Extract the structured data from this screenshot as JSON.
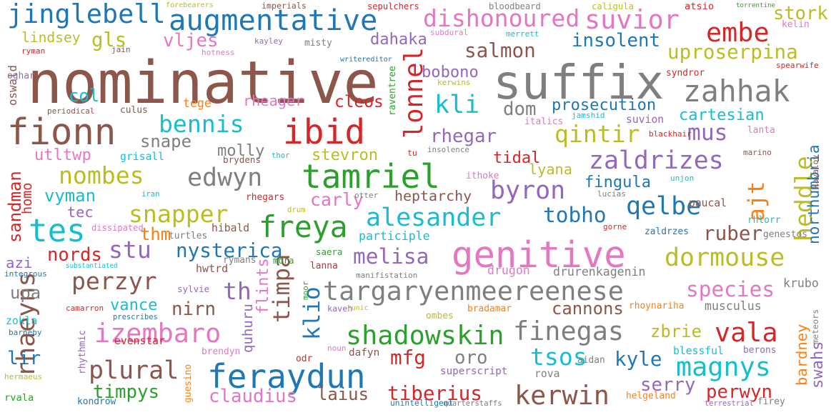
{
  "words": [
    {
      "text": "nominative",
      "color": "#8c564b"
    },
    {
      "text": "suffix",
      "color": "#7f7f7f"
    },
    {
      "text": "fionn",
      "color": "#8c564b"
    },
    {
      "text": "genitive",
      "color": "#e377c2"
    },
    {
      "text": "tamriel",
      "color": "#2ca02c"
    },
    {
      "text": "feraydun",
      "color": "#1f77b4"
    },
    {
      "text": "targaryenmeereenese",
      "color": "#7f7f7f"
    },
    {
      "text": "ibid",
      "color": "#d62728"
    },
    {
      "text": "zahhak",
      "color": "#7f7f7f"
    },
    {
      "text": "jinglebell",
      "color": "#1f77b4"
    },
    {
      "text": "augmentative",
      "color": "#1f77b4"
    },
    {
      "text": "izembaro",
      "color": "#e377c2"
    },
    {
      "text": "freya",
      "color": "#2ca02c"
    },
    {
      "text": "shadowskin",
      "color": "#2ca02c"
    },
    {
      "text": "finegas",
      "color": "#7f7f7f"
    },
    {
      "text": "kerwin",
      "color": "#8c564b"
    },
    {
      "text": "magnys",
      "color": "#17becf"
    },
    {
      "text": "alesander",
      "color": "#17becf"
    },
    {
      "text": "dormouse",
      "color": "#bcbd22"
    },
    {
      "text": "zaldrizes",
      "color": "#9467bd"
    },
    {
      "text": "edwyn",
      "color": "#7f7f7f"
    },
    {
      "text": "qintir",
      "color": "#bcbd22"
    },
    {
      "text": "byron",
      "color": "#9467bd"
    },
    {
      "text": "qelbe",
      "color": "#1f77b4"
    },
    {
      "text": "tes",
      "color": "#17becf"
    },
    {
      "text": "vala",
      "color": "#d62728"
    },
    {
      "text": "plural",
      "color": "#8c564b"
    },
    {
      "text": "suvior",
      "color": "#e377c2"
    },
    {
      "text": "embe",
      "color": "#d62728"
    },
    {
      "text": "dishonoured",
      "color": "#e377c2"
    },
    {
      "text": "perzyr",
      "color": "#8c564b"
    },
    {
      "text": "rhaeyns",
      "color": "#8c564b"
    },
    {
      "text": "snapper",
      "color": "#bcbd22"
    },
    {
      "text": "nombes",
      "color": "#bcbd22"
    },
    {
      "text": "bennis",
      "color": "#17becf"
    },
    {
      "text": "stu",
      "color": "#9467bd"
    },
    {
      "text": "timpa",
      "color": "#8c564b"
    },
    {
      "text": "tsos",
      "color": "#17becf"
    },
    {
      "text": "kli",
      "color": "#17becf"
    },
    {
      "text": "mus",
      "color": "#9467bd"
    },
    {
      "text": "lonnel",
      "color": "#d62728"
    },
    {
      "text": "heddle",
      "color": "#bcbd22"
    },
    {
      "text": "ajt",
      "color": "#ff7f0e"
    },
    {
      "text": "uproserpina",
      "color": "#bcbd22"
    },
    {
      "text": "salmon",
      "color": "#8c564b"
    },
    {
      "text": "insolent",
      "color": "#1f77b4"
    },
    {
      "text": "species",
      "color": "#e377c2"
    },
    {
      "text": "nysterica",
      "color": "#1f77b4"
    },
    {
      "text": "melisa",
      "color": "#9467bd"
    },
    {
      "text": "tobho",
      "color": "#1f77b4"
    },
    {
      "text": "ruber",
      "color": "#8c564b"
    },
    {
      "text": "kyle",
      "color": "#1f77b4"
    },
    {
      "text": "serry",
      "color": "#9467bd"
    },
    {
      "text": "perwyn",
      "color": "#d62728"
    },
    {
      "text": "tiberius",
      "color": "#d62728"
    },
    {
      "text": "claudius",
      "color": "#e377c2"
    },
    {
      "text": "timpys",
      "color": "#2ca02c"
    },
    {
      "text": "laius",
      "color": "#8c564b"
    },
    {
      "text": "mfg",
      "color": "#d62728"
    },
    {
      "text": "oro",
      "color": "#7f7f7f"
    },
    {
      "text": "cannons",
      "color": "#8c564b"
    },
    {
      "text": "nirn",
      "color": "#8c564b"
    },
    {
      "text": "vance",
      "color": "#17becf"
    },
    {
      "text": "th",
      "color": "#9467bd"
    },
    {
      "text": "klio",
      "color": "#1f77b4"
    },
    {
      "text": "flints",
      "color": "#e377c2"
    },
    {
      "text": "quhuru",
      "color": "#9467bd"
    },
    {
      "text": "bardney",
      "color": "#ff7f0e"
    },
    {
      "text": "swahs",
      "color": "#9467bd"
    },
    {
      "text": "northumbria",
      "color": "#1f77b4"
    },
    {
      "text": "zbrie",
      "color": "#bcbd22"
    },
    {
      "text": "lir",
      "color": "#1f77b4"
    },
    {
      "text": "upa",
      "color": "#7f7f7f"
    },
    {
      "text": "azi",
      "color": "#9467bd"
    },
    {
      "text": "nords",
      "color": "#d62728"
    },
    {
      "text": "thm",
      "color": "#ff7f0e"
    },
    {
      "text": "vyman",
      "color": "#17becf"
    },
    {
      "text": "tec",
      "color": "#9467bd"
    },
    {
      "text": "sandman",
      "color": "#d62728"
    },
    {
      "text": "homo",
      "color": "#d62728"
    },
    {
      "text": "utltwp",
      "color": "#e377c2"
    },
    {
      "text": "snape",
      "color": "#7f7f7f"
    },
    {
      "text": "molly",
      "color": "#7f7f7f"
    },
    {
      "text": "stevron",
      "color": "#bcbd22"
    },
    {
      "text": "cleos",
      "color": "#d62728"
    },
    {
      "text": "rheager",
      "color": "#e377c2"
    },
    {
      "text": "rhegar",
      "color": "#9467bd"
    },
    {
      "text": "tidal",
      "color": "#d62728"
    },
    {
      "text": "lyana",
      "color": "#bcbd22"
    },
    {
      "text": "fingula",
      "color": "#1f77b4"
    },
    {
      "text": "dom",
      "color": "#7f7f7f"
    },
    {
      "text": "prosecution",
      "color": "#1f77b4"
    },
    {
      "text": "cartesian",
      "color": "#17becf"
    },
    {
      "text": "bobono",
      "color": "#9467bd"
    },
    {
      "text": "vljes",
      "color": "#e377c2"
    },
    {
      "text": "gls",
      "color": "#bcbd22"
    },
    {
      "text": "dahaka",
      "color": "#9467bd"
    },
    {
      "text": "oswald",
      "color": "#8c564b"
    },
    {
      "text": "col",
      "color": "#17becf"
    },
    {
      "text": "stork",
      "color": "#bcbd22"
    },
    {
      "text": "carly",
      "color": "#e377c2"
    },
    {
      "text": "heptarchy",
      "color": "#8c564b"
    },
    {
      "text": "drurenkagenin",
      "color": "#7f7f7f"
    },
    {
      "text": "musculus",
      "color": "#7f7f7f"
    },
    {
      "text": "krubo",
      "color": "#7f7f7f"
    },
    {
      "text": "zokla",
      "color": "#17becf"
    },
    {
      "text": "lindsey",
      "color": "#bcbd22"
    },
    {
      "text": "hwtrd",
      "color": "#8c564b"
    },
    {
      "text": "drugon",
      "color": "#e377c2"
    },
    {
      "text": "rova",
      "color": "#7f7f7f"
    },
    {
      "text": "blessful",
      "color": "#17becf"
    },
    {
      "text": "participle",
      "color": "#17becf"
    },
    {
      "text": "paucal",
      "color": "#8c564b"
    },
    {
      "text": "grisall",
      "color": "#17becf"
    },
    {
      "text": "brydens",
      "color": "#8c564b"
    },
    {
      "text": "hibald",
      "color": "#8c564b"
    },
    {
      "text": "evenstar",
      "color": "#d62728"
    },
    {
      "text": "dafyn",
      "color": "#8c564b"
    },
    {
      "text": "helgeland",
      "color": "#ff7f0e"
    },
    {
      "text": "superscript",
      "color": "#9467bd"
    },
    {
      "text": "barneby",
      "color": "#1f77b4"
    },
    {
      "text": "tege",
      "color": "#ff7f0e"
    },
    {
      "text": "culus",
      "color": "#8c564b"
    },
    {
      "text": "integrous",
      "color": "#1f77b4"
    },
    {
      "text": "substantiated",
      "color": "#17becf"
    },
    {
      "text": "sylvie",
      "color": "#9467bd"
    },
    {
      "text": "ombes",
      "color": "#bcbd22"
    },
    {
      "text": "rhoynariha",
      "color": "#ff7f0e"
    },
    {
      "text": "bradamar",
      "color": "#ff7f0e"
    },
    {
      "text": "kaveh",
      "color": "#9467bd"
    },
    {
      "text": "runic",
      "color": "#bcbd22"
    },
    {
      "text": "mora",
      "color": "#2ca02c"
    },
    {
      "text": "lanna",
      "color": "#d62728"
    },
    {
      "text": "saera",
      "color": "#2ca02c"
    },
    {
      "text": "rymans",
      "color": "#7f7f7f"
    },
    {
      "text": "manifistation",
      "color": "#7f7f7f"
    },
    {
      "text": "turtles",
      "color": "#7f7f7f"
    },
    {
      "text": "dissipated",
      "color": "#e377c2"
    },
    {
      "text": "forebearers",
      "color": "#bcbd22"
    },
    {
      "text": "imperials",
      "color": "#8c564b"
    },
    {
      "text": "sepulchers",
      "color": "#d62728"
    },
    {
      "text": "bloodbeard",
      "color": "#7f7f7f"
    },
    {
      "text": "caligula",
      "color": "#bcbd22"
    },
    {
      "text": "atsio",
      "color": "#d62728"
    },
    {
      "text": "torrentine",
      "color": "#2ca02c"
    },
    {
      "text": "kelin",
      "color": "#e377c2"
    },
    {
      "text": "subdural",
      "color": "#e377c2"
    },
    {
      "text": "merrett",
      "color": "#17becf"
    },
    {
      "text": "misty",
      "color": "#7f7f7f"
    },
    {
      "text": "kayley",
      "color": "#9467bd"
    },
    {
      "text": "writereditor",
      "color": "#1f77b4"
    },
    {
      "text": "ryman",
      "color": "#d62728"
    },
    {
      "text": "jain",
      "color": "#8c564b"
    },
    {
      "text": "hotness",
      "color": "#e377c2"
    },
    {
      "text": "oghar",
      "color": "#9467bd"
    },
    {
      "text": "periodical",
      "color": "#8c564b"
    },
    {
      "text": "syndror",
      "color": "#d62728"
    },
    {
      "text": "spearwife",
      "color": "#d62728"
    },
    {
      "text": "kerwins",
      "color": "#bcbd22"
    },
    {
      "text": "raventree",
      "color": "#2ca02c"
    },
    {
      "text": "italics",
      "color": "#e377c2"
    },
    {
      "text": "jamshid",
      "color": "#17becf"
    },
    {
      "text": "suvion",
      "color": "#9467bd"
    },
    {
      "text": "lanta",
      "color": "#e377c2"
    },
    {
      "text": "blackhair",
      "color": "#d62728"
    },
    {
      "text": "insolence",
      "color": "#7f7f7f"
    },
    {
      "text": "tu",
      "color": "#d62728"
    },
    {
      "text": "marino",
      "color": "#8c564b"
    },
    {
      "text": "kavalov",
      "color": "#8c564b"
    },
    {
      "text": "unjon",
      "color": "#17becf"
    },
    {
      "text": "ithoke",
      "color": "#e377c2"
    },
    {
      "text": "lucias",
      "color": "#7f7f7f"
    },
    {
      "text": "thor",
      "color": "#17becf"
    },
    {
      "text": "iran",
      "color": "#17becf"
    },
    {
      "text": "drum",
      "color": "#bcbd22"
    },
    {
      "text": "otter",
      "color": "#7f7f7f"
    },
    {
      "text": "rhegars",
      "color": "#d62728"
    },
    {
      "text": "gorne",
      "color": "#d62728"
    },
    {
      "text": "rhlorr",
      "color": "#17becf"
    },
    {
      "text": "zaldrzes",
      "color": "#1f77b4"
    },
    {
      "text": "genestos",
      "color": "#7f7f7f"
    },
    {
      "text": "moor",
      "color": "#2ca02c"
    },
    {
      "text": "camarron",
      "color": "#d62728"
    },
    {
      "text": "prescribes",
      "color": "#1f77b4"
    },
    {
      "text": "rhythmic",
      "color": "#9467bd"
    },
    {
      "text": "brendyn",
      "color": "#e377c2"
    },
    {
      "text": "noun",
      "color": "#e377c2"
    },
    {
      "text": "odr",
      "color": "#d62728"
    },
    {
      "text": "aidan",
      "color": "#7f7f7f"
    },
    {
      "text": "berons",
      "color": "#9467bd"
    },
    {
      "text": "meteors",
      "color": "#7f7f7f"
    },
    {
      "text": "guesino",
      "color": "#ff7f0e"
    },
    {
      "text": "hermaeus",
      "color": "#bcbd22"
    },
    {
      "text": "rvala",
      "color": "#2ca02c"
    },
    {
      "text": "kondrow",
      "color": "#1f77b4"
    },
    {
      "text": "unintelligent",
      "color": "#1f77b4"
    },
    {
      "text": "quarterstaffs",
      "color": "#7f7f7f"
    },
    {
      "text": "terrestrial",
      "color": "#9467bd"
    },
    {
      "text": "firey",
      "color": "#7f7f7f"
    }
  ]
}
